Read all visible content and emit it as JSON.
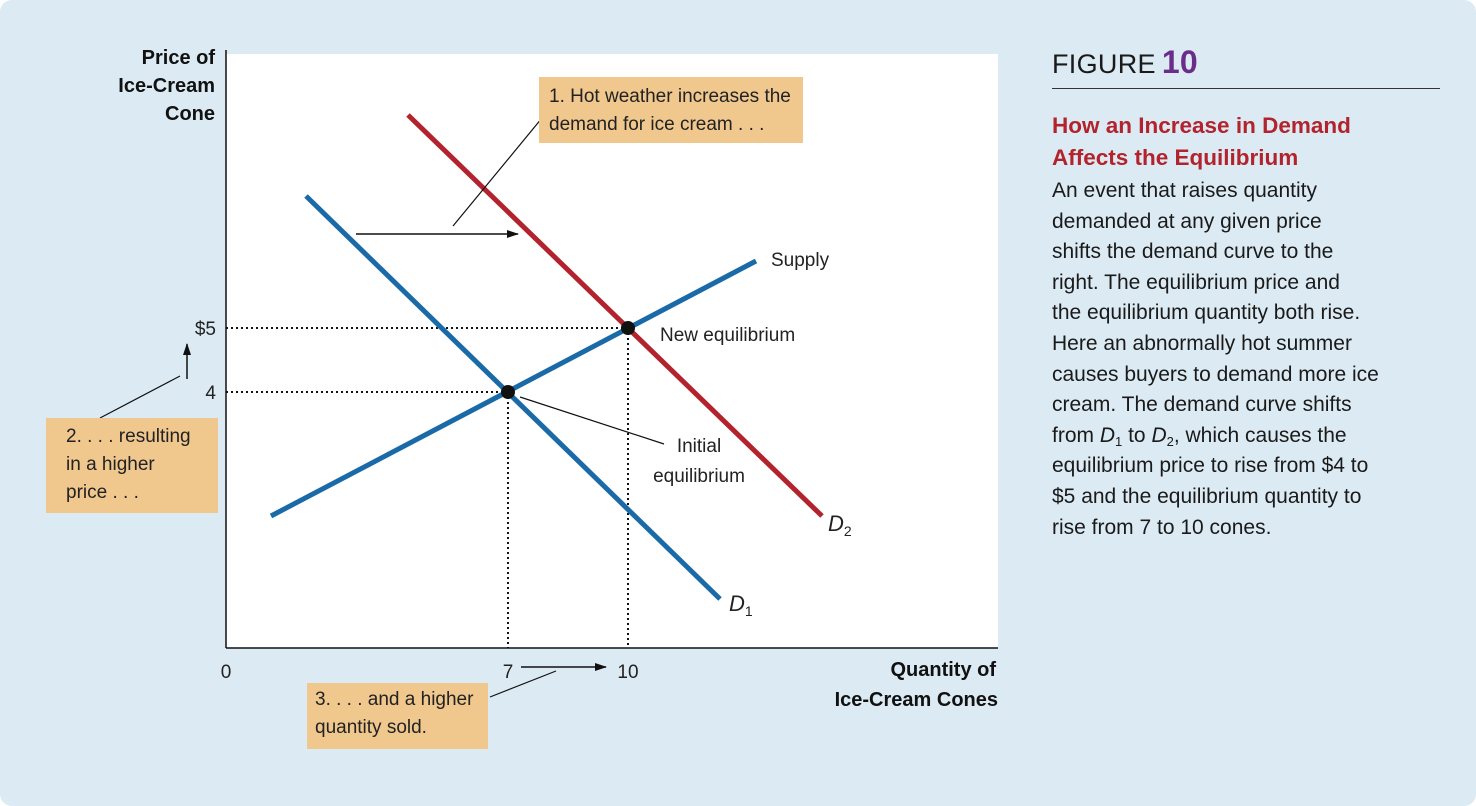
{
  "chart_data": {
    "type": "line",
    "x_axis": {
      "label_lines": [
        "Quantity of",
        "Ice-Cream Cones"
      ],
      "origin_label": "0",
      "ticks": [
        "7",
        "10"
      ]
    },
    "y_axis": {
      "label_lines": [
        "Price of",
        "Ice-Cream",
        "Cone"
      ],
      "ticks": [
        "$5",
        "4"
      ]
    },
    "curves": {
      "supply": {
        "label": "Supply",
        "color": "#1a6aa8"
      },
      "d1": {
        "label": "D",
        "subscript": "1",
        "color": "#1a6aa8"
      },
      "d2": {
        "label": "D",
        "subscript": "2",
        "color": "#b2232d"
      }
    },
    "points": {
      "initial": {
        "label_lines": [
          "Initial",
          "equilibrium"
        ],
        "quantity": 7,
        "price": 4
      },
      "new": {
        "label": "New equilibrium",
        "quantity": 10,
        "price": 5
      }
    },
    "callouts": {
      "hot_weather": [
        "1. Hot weather increases the",
        "demand for ice cream . . ."
      ],
      "higher_price": [
        "2. . . . resulting",
        "in a higher",
        "price . . ."
      ],
      "higher_quantity": [
        "3. . . . and a higher",
        "quantity sold."
      ]
    },
    "colors": {
      "supply": "#1a6aa8",
      "demand_initial": "#1a6aa8",
      "demand_new": "#b2232d",
      "callout_bg": "#f0c88e"
    }
  },
  "figure": {
    "label": "FIGURE",
    "number": "10",
    "title_lines": [
      "How an Increase in Demand",
      "Affects the Equilibrium"
    ],
    "body": {
      "l1": "An event that raises quantity",
      "l2": "demanded at any given price",
      "l3": "shifts the demand curve to the",
      "l4": "right. The equilibrium price and",
      "l5": "the equilibrium quantity both rise.",
      "l6": "Here an abnormally hot summer",
      "l7": "causes buyers to demand more ice",
      "l8": "cream. The demand curve shifts",
      "l9a": "from ",
      "l9_d1": "D",
      "l9_d1_sub": "1",
      "l9b": " to ",
      "l9_d2": "D",
      "l9_d2_sub": "2",
      "l9c": ", which causes the",
      "l10": "equilibrium price to rise from $4 to",
      "l11": "$5 and the equilibrium quantity to",
      "l12": "rise from 7 to 10 cones."
    }
  }
}
